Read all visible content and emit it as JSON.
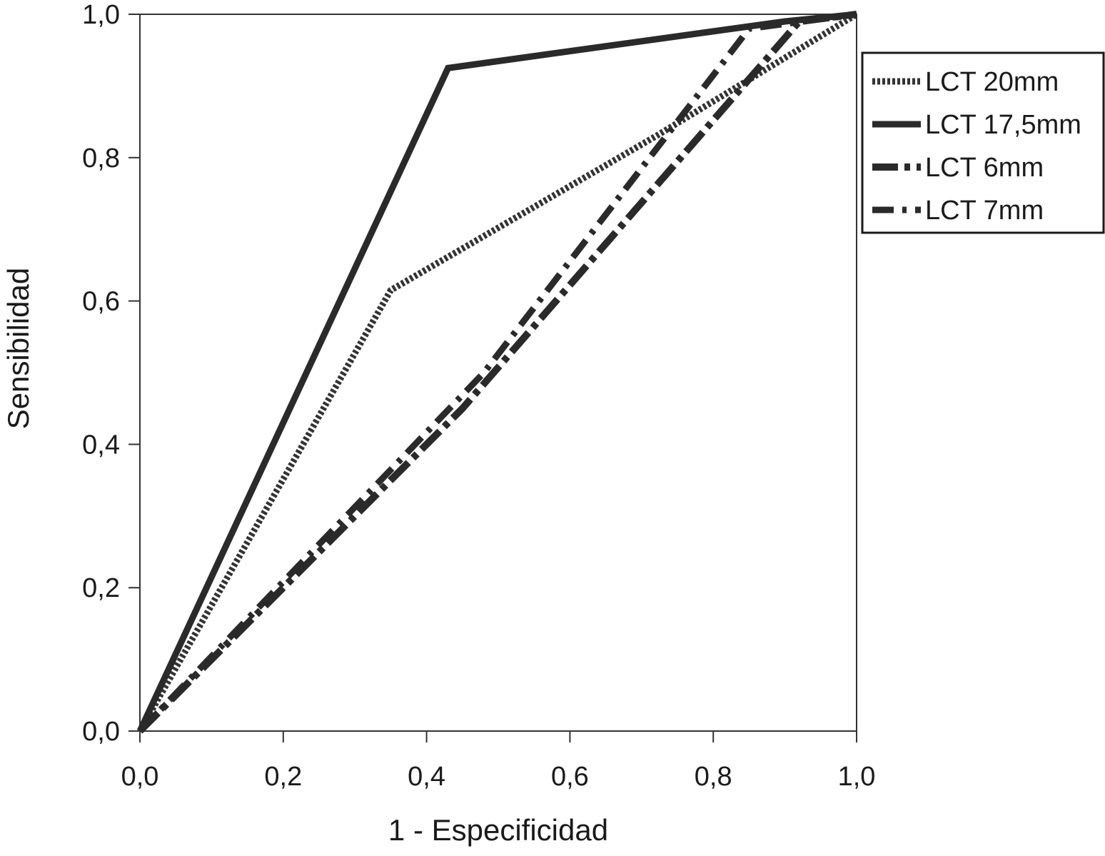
{
  "chart_data": {
    "type": "line",
    "xlabel": "1 - Especificidad",
    "ylabel": "Sensibilidad",
    "xlim": [
      0,
      1
    ],
    "ylim": [
      0,
      1
    ],
    "xticks": [
      "0,0",
      "0,2",
      "0,4",
      "0,6",
      "0,8",
      "1,0"
    ],
    "yticks": [
      "0,0",
      "0,2",
      "0,4",
      "0,6",
      "0,8",
      "1,0"
    ],
    "grid": false,
    "legend": {
      "placement": "right-top"
    },
    "series": [
      {
        "name": "LCT 20mm",
        "style": "dotted",
        "color": "#333333",
        "points": [
          [
            0,
            0
          ],
          [
            0.35,
            0.615
          ],
          [
            0.72,
            0.83
          ],
          [
            1,
            1
          ]
        ]
      },
      {
        "name": "LCT 17,5mm",
        "style": "solid",
        "color": "#2a2a2a",
        "points": [
          [
            0,
            0
          ],
          [
            0.43,
            0.925
          ],
          [
            0.9,
            0.99
          ],
          [
            1,
            1
          ]
        ]
      },
      {
        "name": "LCT 6mm",
        "style": "dashed",
        "color": "#2a2a2a",
        "points": [
          [
            0,
            0
          ],
          [
            0.45,
            0.45
          ],
          [
            0.92,
            0.99
          ],
          [
            1,
            1
          ]
        ]
      },
      {
        "name": "LCT 7mm",
        "style": "dash-dot",
        "color": "#2a2a2a",
        "points": [
          [
            0,
            0
          ],
          [
            0.48,
            0.5
          ],
          [
            0.85,
            0.98
          ],
          [
            1,
            1
          ]
        ]
      }
    ]
  }
}
